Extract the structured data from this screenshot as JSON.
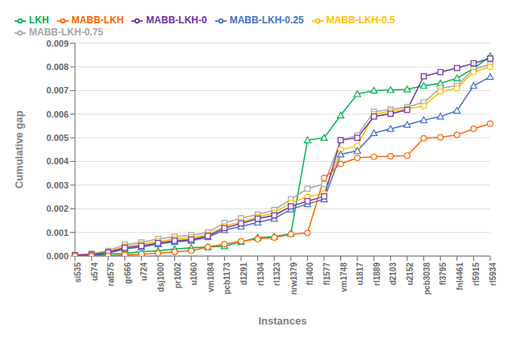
{
  "chart_data": {
    "type": "line",
    "xlabel": "Instances",
    "ylabel": "Cumulative gap",
    "categories": [
      "si535",
      "u574",
      "rat575",
      "gr666",
      "u724",
      "dsj1000",
      "pr1002",
      "u1060",
      "vm1084",
      "pcb1173",
      "d1291",
      "rl1304",
      "rl1323",
      "nrw1379",
      "fl1400",
      "fl1577",
      "vm1748",
      "u1817",
      "rl1889",
      "d2103",
      "u2152",
      "pcb3038",
      "fl3795",
      "fnl4461",
      "rl5915",
      "rl5934"
    ],
    "series": [
      {
        "name": "LKH",
        "color": "#00b050",
        "marker": "triangle",
        "values": [
          0.0,
          2e-05,
          8e-05,
          0.00012,
          0.00018,
          0.00022,
          0.0003,
          0.00035,
          0.00038,
          0.00042,
          0.0006,
          0.00078,
          0.00082,
          0.00095,
          0.0049,
          0.005,
          0.00595,
          0.00685,
          0.007,
          0.00702,
          0.00705,
          0.0072,
          0.0073,
          0.00752,
          0.00793,
          0.00845
        ]
      },
      {
        "name": "MABB-LKH-0.75",
        "color": "#a6a6a6",
        "marker": "square",
        "values": [
          5e-05,
          0.0001,
          0.00022,
          0.00048,
          0.00058,
          0.00072,
          0.00082,
          0.00088,
          0.001,
          0.0014,
          0.0016,
          0.00175,
          0.00195,
          0.0024,
          0.00285,
          0.00305,
          0.0049,
          0.0051,
          0.0061,
          0.0062,
          0.0063,
          0.0065,
          0.0071,
          0.0072,
          0.0079,
          0.0081
        ]
      },
      {
        "name": "MABB-LKH-0.5",
        "color": "#ffc000",
        "marker": "circle",
        "values": [
          4e-05,
          8e-05,
          0.00018,
          0.0004,
          0.0005,
          0.00062,
          0.00072,
          0.00078,
          0.0009,
          0.00125,
          0.00145,
          0.00165,
          0.00183,
          0.00225,
          0.0025,
          0.00265,
          0.0045,
          0.00465,
          0.006,
          0.00612,
          0.00622,
          0.00635,
          0.00695,
          0.0071,
          0.00778,
          0.008
        ]
      },
      {
        "name": "MABB-LKH-0.25",
        "color": "#4472c4",
        "marker": "triangle",
        "values": [
          2e-05,
          5e-05,
          0.00012,
          0.0003,
          0.00038,
          0.0005,
          0.0006,
          0.00065,
          0.0008,
          0.0011,
          0.00125,
          0.00142,
          0.00158,
          0.00198,
          0.0022,
          0.0024,
          0.0043,
          0.00445,
          0.0052,
          0.00538,
          0.00555,
          0.00575,
          0.0059,
          0.00615,
          0.0072,
          0.00758
        ]
      },
      {
        "name": "MABB-LKH-0",
        "color": "#7030a0",
        "marker": "square",
        "values": [
          3e-05,
          6e-05,
          0.00015,
          0.00035,
          0.00043,
          0.00055,
          0.00065,
          0.0007,
          0.00085,
          0.00118,
          0.00138,
          0.00158,
          0.00172,
          0.0021,
          0.00232,
          0.00252,
          0.0049,
          0.005,
          0.0059,
          0.00602,
          0.00618,
          0.0076,
          0.00778,
          0.00795,
          0.00815,
          0.00835
        ]
      },
      {
        "name": "MABB-LKH",
        "color": "#ff6600",
        "marker": "circle",
        "values": [
          0.0,
          0.0,
          1e-05,
          5e-05,
          8e-05,
          0.00012,
          0.00018,
          0.00022,
          0.00038,
          0.0005,
          0.00062,
          0.00072,
          0.00078,
          0.00092,
          0.00098,
          0.0033,
          0.0039,
          0.00415,
          0.0042,
          0.00422,
          0.00425,
          0.00498,
          0.00502,
          0.00512,
          0.00538,
          0.0056
        ]
      }
    ],
    "ylim": [
      0,
      0.009
    ],
    "yticks": [
      {
        "value": 0,
        "label": "0.000"
      },
      {
        "value": 0.001,
        "label": "0.001"
      },
      {
        "value": 0.002,
        "label": "0.002"
      },
      {
        "value": 0.003,
        "label": "0.003"
      },
      {
        "value": 0.004,
        "label": "0.004"
      },
      {
        "value": 0.005,
        "label": "0.005"
      },
      {
        "value": 0.006,
        "label": "0.006"
      },
      {
        "value": 0.007,
        "label": "0.007"
      },
      {
        "value": 0.008,
        "label": "0.008"
      },
      {
        "value": 0.009,
        "label": "0.009"
      }
    ],
    "grid": true,
    "legend": "upper left"
  }
}
